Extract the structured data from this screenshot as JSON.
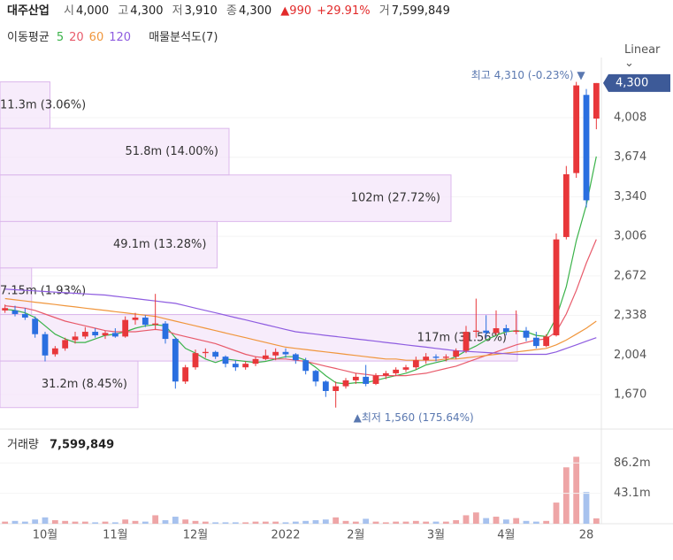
{
  "header": {
    "name": "대주산업",
    "fields": [
      {
        "label": "시",
        "value": "4,000"
      },
      {
        "label": "고",
        "value": "4,300"
      },
      {
        "label": "저",
        "value": "3,910"
      },
      {
        "label": "종",
        "value": "4,300"
      }
    ],
    "change": "▲990",
    "change_pct": "+29.91%",
    "volume_label": "거",
    "volume_value": "7,599,849",
    "ma_title": "이동평균",
    "profile_title": "매물분석도(7)",
    "scale_mode": "Linear"
  },
  "chart_data": {
    "type": "candlestick",
    "categories": [
      null,
      null,
      null,
      null,
      "10월",
      null,
      null,
      null,
      null,
      null,
      null,
      "11월",
      null,
      null,
      null,
      null,
      null,
      null,
      null,
      "12월",
      null,
      null,
      null,
      null,
      null,
      null,
      null,
      null,
      "2022",
      null,
      null,
      null,
      null,
      null,
      null,
      "2월",
      null,
      null,
      null,
      null,
      null,
      null,
      null,
      "3월",
      null,
      null,
      null,
      null,
      null,
      null,
      "4월",
      null,
      null,
      null,
      null,
      null,
      null,
      null,
      "28",
      null
    ],
    "open": [
      2380,
      2380,
      2350,
      2310,
      2180,
      2010,
      2060,
      2130,
      2160,
      2200,
      2170,
      2190,
      2160,
      2300,
      2320,
      2260,
      2270,
      2140,
      1780,
      1900,
      2020,
      2030,
      1990,
      1930,
      1900,
      1930,
      1970,
      2000,
      2030,
      2010,
      1960,
      1870,
      1780,
      1700,
      1740,
      1790,
      1820,
      1760,
      1830,
      1850,
      1880,
      1900,
      1960,
      1990,
      1980,
      1990,
      2040,
      2200,
      2210,
      2190,
      2230,
      2200,
      2210,
      2150,
      2080,
      2170,
      3000,
      3540,
      4200,
      4000
    ],
    "high": [
      2430,
      2420,
      2400,
      2330,
      2200,
      2080,
      2150,
      2200,
      2240,
      2230,
      2210,
      2230,
      2330,
      2360,
      2340,
      2520,
      2290,
      2150,
      1920,
      2050,
      2060,
      2040,
      2000,
      1960,
      1950,
      1990,
      2050,
      2060,
      2060,
      2020,
      1980,
      1880,
      1790,
      1780,
      1810,
      1850,
      1920,
      1850,
      1870,
      1900,
      1920,
      1990,
      2020,
      2010,
      2010,
      2060,
      2250,
      2480,
      2340,
      2380,
      2260,
      2380,
      2240,
      2200,
      2180,
      3030,
      3600,
      4310,
      4250,
      4300
    ],
    "low": [
      2360,
      2330,
      2300,
      2150,
      1950,
      1990,
      2040,
      2100,
      2140,
      2150,
      2140,
      2150,
      2150,
      2260,
      2240,
      2220,
      2100,
      1720,
      1760,
      1880,
      1980,
      1970,
      1900,
      1870,
      1880,
      1910,
      1960,
      1960,
      1980,
      1930,
      1840,
      1740,
      1650,
      1560,
      1720,
      1760,
      1740,
      1750,
      1800,
      1830,
      1860,
      1880,
      1930,
      1950,
      1950,
      1970,
      2020,
      2150,
      2150,
      2170,
      2170,
      2180,
      2120,
      2060,
      2070,
      2160,
      2980,
      3500,
      3250,
      3910
    ],
    "close": [
      2400,
      2350,
      2320,
      2180,
      2000,
      2060,
      2130,
      2160,
      2200,
      2170,
      2190,
      2160,
      2300,
      2320,
      2260,
      2270,
      2140,
      1780,
      1900,
      2020,
      2030,
      1990,
      1930,
      1900,
      1930,
      1970,
      2000,
      2030,
      2010,
      1960,
      1870,
      1780,
      1700,
      1740,
      1790,
      1820,
      1760,
      1830,
      1850,
      1880,
      1900,
      1960,
      1990,
      1980,
      1990,
      2040,
      2200,
      2210,
      2190,
      2230,
      2200,
      2210,
      2150,
      2080,
      2160,
      2980,
      3530,
      4280,
      3310,
      4300
    ],
    "up_color": "#e8373a",
    "down_color": "#2a6fe0",
    "ylim": [
      1416,
      4441
    ],
    "yticks": [
      {
        "value": 1670,
        "label": "1,670"
      },
      {
        "value": 2004,
        "label": "2,004"
      },
      {
        "value": 2338,
        "label": "2,338"
      },
      {
        "value": 2672,
        "label": "2,672"
      },
      {
        "value": 3006,
        "label": "3,006"
      },
      {
        "value": 3340,
        "label": "3,340"
      },
      {
        "value": 3674,
        "label": "3,674"
      },
      {
        "value": 4008,
        "label": "4,008"
      }
    ],
    "grid": true,
    "last_price": {
      "value": 4300,
      "label": "4,300",
      "color": "#3d5a98"
    },
    "annotations": [
      {
        "kind": "high",
        "value": 4310,
        "label": "최고 4,310 (-0.23%) ▼",
        "color": "#5a78b0"
      },
      {
        "kind": "low",
        "value": 1560,
        "label": "▲최저 1,560 (175.64%)",
        "color": "#5a78b0"
      }
    ],
    "series": [
      {
        "name": "5",
        "color": "#3bb34a",
        "values": [
          2390,
          2380,
          2360,
          2320,
          2250,
          2180,
          2140,
          2110,
          2110,
          2140,
          2170,
          2180,
          2200,
          2230,
          2250,
          2260,
          2250,
          2150,
          2060,
          2020,
          1970,
          1940,
          1970,
          1960,
          1950,
          1940,
          1950,
          1970,
          1990,
          1990,
          1960,
          1900,
          1830,
          1770,
          1760,
          1770,
          1770,
          1790,
          1810,
          1830,
          1850,
          1880,
          1920,
          1940,
          1960,
          1990,
          2040,
          2080,
          2130,
          2170,
          2200,
          2210,
          2200,
          2170,
          2160,
          2320,
          2580,
          2970,
          3270,
          3680
        ]
      },
      {
        "name": "20",
        "color": "#e85a6a",
        "values": [
          2420,
          2410,
          2400,
          2380,
          2350,
          2320,
          2290,
          2270,
          2250,
          2230,
          2210,
          2200,
          2200,
          2200,
          2210,
          2220,
          2210,
          2180,
          2160,
          2140,
          2120,
          2100,
          2070,
          2040,
          2010,
          1990,
          1980,
          1970,
          1970,
          1960,
          1950,
          1930,
          1910,
          1890,
          1870,
          1850,
          1840,
          1830,
          1830,
          1830,
          1830,
          1840,
          1850,
          1870,
          1890,
          1910,
          1940,
          1970,
          2000,
          2030,
          2060,
          2090,
          2110,
          2130,
          2140,
          2200,
          2350,
          2550,
          2780,
          2980
        ]
      },
      {
        "name": "60",
        "color": "#f0963c",
        "values": [
          2480,
          2470,
          2460,
          2450,
          2440,
          2430,
          2420,
          2410,
          2400,
          2390,
          2380,
          2370,
          2360,
          2350,
          2340,
          2330,
          2310,
          2290,
          2270,
          2250,
          2230,
          2210,
          2190,
          2170,
          2150,
          2130,
          2110,
          2090,
          2070,
          2060,
          2050,
          2040,
          2030,
          2020,
          2010,
          2000,
          1990,
          1980,
          1970,
          1970,
          1960,
          1960,
          1960,
          1960,
          1970,
          1970,
          1980,
          1990,
          2000,
          2010,
          2020,
          2030,
          2040,
          2050,
          2060,
          2090,
          2130,
          2180,
          2230,
          2290
        ]
      },
      {
        "name": "120",
        "color": "#8e5ce0",
        "values": [
          2560,
          2555,
          2550,
          2545,
          2540,
          2535,
          2530,
          2525,
          2520,
          2515,
          2510,
          2500,
          2490,
          2480,
          2470,
          2460,
          2450,
          2440,
          2420,
          2400,
          2380,
          2360,
          2340,
          2320,
          2300,
          2280,
          2260,
          2240,
          2220,
          2200,
          2190,
          2180,
          2170,
          2160,
          2150,
          2140,
          2130,
          2120,
          2110,
          2100,
          2090,
          2080,
          2070,
          2060,
          2050,
          2040,
          2035,
          2030,
          2025,
          2020,
          2015,
          2010,
          2010,
          2010,
          2010,
          2030,
          2060,
          2090,
          2120,
          2150
        ]
      }
    ],
    "profile": {
      "xlim": [
        0,
        136
      ],
      "color": "#f3e4fa",
      "stroke": "#dcb8ec",
      "rows": [
        {
          "from": 3917,
          "to": 4310,
          "value": 11.3,
          "label": "11.3m (3.06%)"
        },
        {
          "from": 3524,
          "to": 3917,
          "value": 51.8,
          "label": "51.8m (14.00%)"
        },
        {
          "from": 3131,
          "to": 3524,
          "value": 102,
          "label": "102m (27.72%)"
        },
        {
          "from": 2739,
          "to": 3131,
          "value": 49.1,
          "label": "49.1m (13.28%)"
        },
        {
          "from": 2346,
          "to": 2739,
          "value": 7.15,
          "label": "7.15m (1.93%)"
        },
        {
          "from": 1953,
          "to": 2346,
          "value": 117,
          "label": "117m (31.56%)"
        },
        {
          "from": 1560,
          "to": 1953,
          "value": 31.2,
          "label": "31.2m (8.45%)"
        }
      ]
    },
    "volume": {
      "title": "거래량",
      "value_label": "7,599,849",
      "values": [
        3,
        4,
        3,
        6,
        9,
        5,
        4,
        3,
        3,
        2,
        3,
        2,
        6,
        4,
        3,
        12,
        5,
        10,
        6,
        4,
        3,
        2,
        2,
        2,
        2,
        3,
        3,
        3,
        2,
        3,
        4,
        5,
        6,
        9,
        4,
        3,
        7,
        3,
        2,
        3,
        3,
        4,
        3,
        3,
        3,
        5,
        12,
        16,
        8,
        10,
        6,
        8,
        4,
        3,
        4,
        30,
        80,
        95,
        45,
        7.599849
      ],
      "ylim": [
        0,
        128
      ],
      "yticks": [
        {
          "value": 43.1,
          "label": "43.1m"
        },
        {
          "value": 86.2,
          "label": "86.2m"
        }
      ],
      "up_color": "#eea5a6",
      "down_color": "#a7c2ee"
    }
  }
}
